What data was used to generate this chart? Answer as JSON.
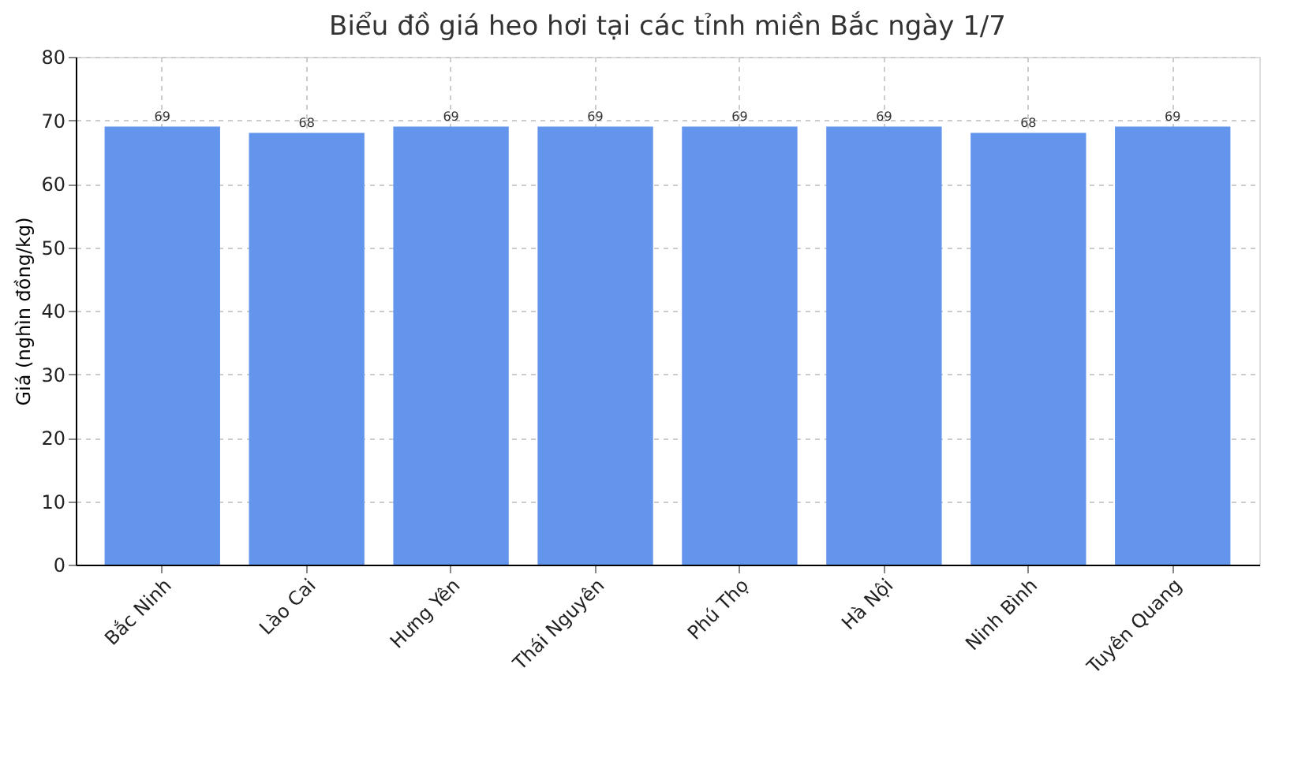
{
  "chart_data": {
    "type": "bar",
    "title": "Biểu đồ giá heo hơi tại các tỉnh miền Bắc ngày 1/7",
    "ylabel": "Giá (nghìn đồng/kg)",
    "categories": [
      "Bắc Ninh",
      "Lào Cai",
      "Hưng Yên",
      "Thái Nguyên",
      "Phú Thọ",
      "Hà Nội",
      "Ninh Bình",
      "Tuyên Quang"
    ],
    "values": [
      69,
      68,
      69,
      69,
      69,
      69,
      68,
      69
    ],
    "color": "#6495ed",
    "ylim": [
      0,
      80
    ],
    "yticks": [
      0,
      10,
      20,
      30,
      40,
      50,
      60,
      70,
      80
    ],
    "grid": true,
    "data_labels": true
  }
}
